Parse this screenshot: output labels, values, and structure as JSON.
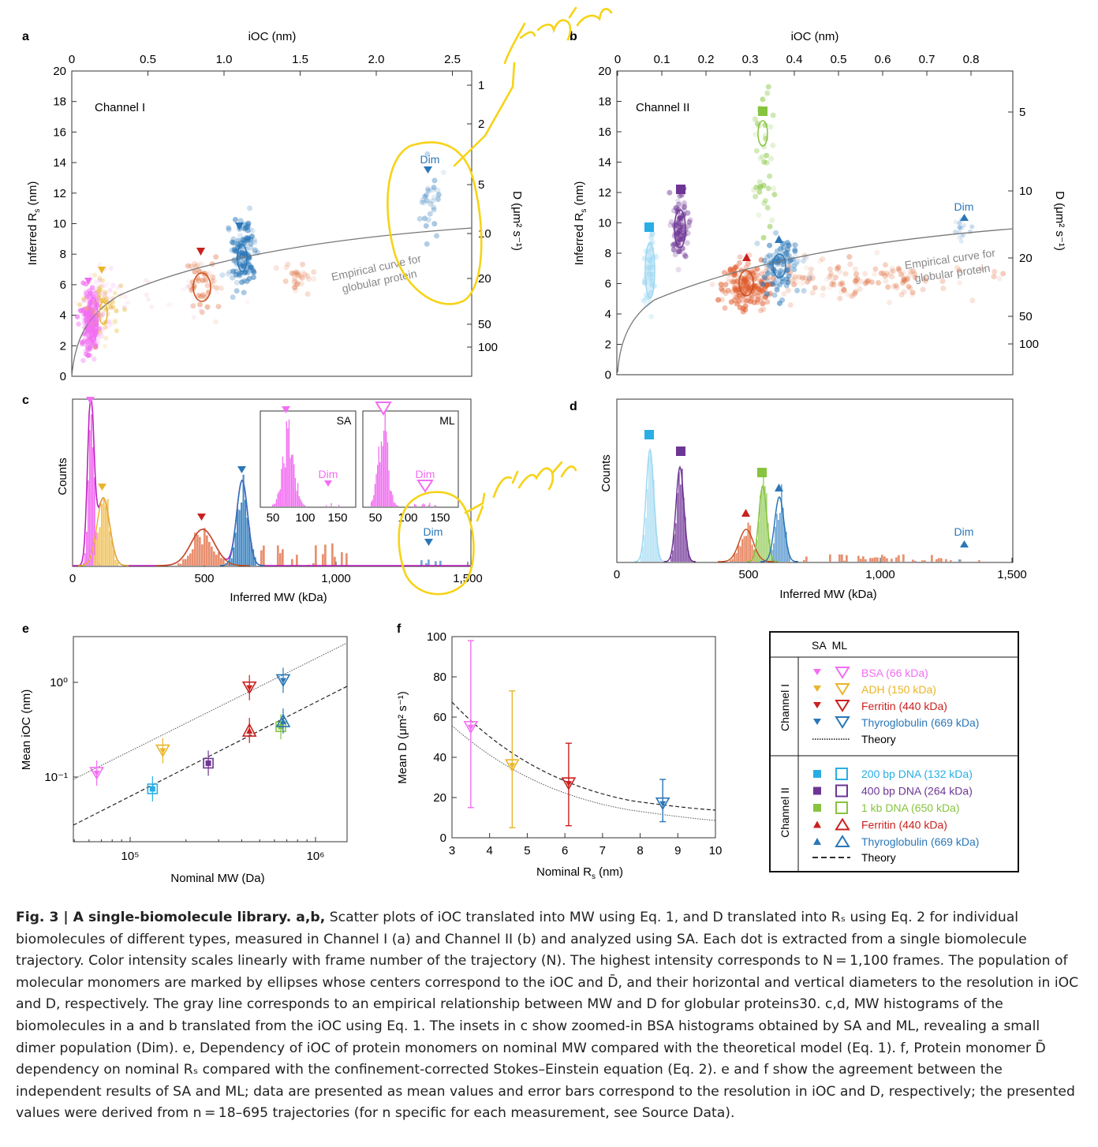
{
  "panels": {
    "a": {
      "label": "a",
      "top_axis": "iOC (nm)",
      "left_axis": "Inferred R",
      "left_sub": "s",
      "left_unit": " (nm)",
      "right_axis": "D (μm² s⁻¹)",
      "channel": "Channel I",
      "dim": "Dim",
      "curve_label_1": "Empirical curve for",
      "curve_label_2": "globular protein",
      "top_ticks": [
        "0",
        "0.5",
        "1.0",
        "1.5",
        "2.0",
        "2.5"
      ],
      "left_ticks": [
        "0",
        "2",
        "4",
        "6",
        "8",
        "10",
        "12",
        "14",
        "16",
        "18",
        "20"
      ],
      "right_ticks": [
        "1",
        "2",
        "5",
        "10",
        "20",
        "50",
        "100"
      ]
    },
    "b": {
      "label": "b",
      "top_axis": "iOC (nm)",
      "left_axis": "Inferred R",
      "left_sub": "s",
      "left_unit": " (nm)",
      "right_axis": "D (μm² s⁻¹)",
      "channel": "Channel II",
      "dim": "Dim",
      "curve_label_1": "Empirical curve for",
      "curve_label_2": "globular protein",
      "top_ticks": [
        "0",
        "0.1",
        "0.2",
        "0.3",
        "0.4",
        "0.5",
        "0.6",
        "0.7",
        "0.8"
      ],
      "left_ticks": [
        "0",
        "2",
        "4",
        "6",
        "8",
        "10",
        "12",
        "14",
        "16",
        "18",
        "20"
      ],
      "right_ticks": [
        "5",
        "10",
        "20",
        "50",
        "100"
      ]
    },
    "c": {
      "label": "c",
      "xlabel": "Inferred MW (kDa)",
      "ylabel": "Counts",
      "xticks": [
        "0",
        "500",
        "1,000",
        "1,500"
      ],
      "inset1": "SA",
      "inset2": "ML",
      "inset_dim": "Dim",
      "inset_ticks": [
        "50",
        "100",
        "150"
      ],
      "dim": "Dim"
    },
    "d": {
      "label": "d",
      "xlabel": "Inferred MW (kDa)",
      "ylabel": "Counts",
      "xticks": [
        "0",
        "500",
        "1,000",
        "1,500"
      ],
      "dim": "Dim"
    },
    "e": {
      "label": "e",
      "xlabel": "Nominal MW (Da)",
      "ylabel": "Mean iOC (nm)",
      "yticks": [
        "10⁻¹",
        "10⁰"
      ],
      "xticks": [
        "10⁵",
        "10⁶"
      ]
    },
    "f": {
      "label": "f",
      "xlabel": "Nominal R",
      "xlabel_sub": "s",
      "xlabel_unit": " (nm)",
      "ylabel": "Mean D (μm² s⁻¹)",
      "xticks": [
        "3",
        "4",
        "5",
        "6",
        "7",
        "8",
        "9",
        "10"
      ],
      "yticks": [
        "0",
        "20",
        "40",
        "60",
        "80",
        "100"
      ]
    }
  },
  "legend": {
    "header": "SA  ML",
    "group1": "Channel I",
    "group2": "Channel II",
    "items1": [
      {
        "label": "BSA (66 kDa)",
        "color": "#f26ef2"
      },
      {
        "label": "ADH (150 kDa)",
        "color": "#e9b52a"
      },
      {
        "label": "Ferritin (440 kDa)",
        "color": "#c8211f"
      },
      {
        "label": "Thyroglobulin (669 kDa)",
        "color": "#2a77b8"
      }
    ],
    "theory1": "Theory",
    "items2": [
      {
        "label": "200 bp DNA (132 kDa)",
        "color": "#28aee5"
      },
      {
        "label": "400 bp DNA (264 kDa)",
        "color": "#6e3694"
      },
      {
        "label": "1 kb DNA (650 kDa)",
        "color": "#86c440"
      },
      {
        "label": "Ferritin (440 kDa)",
        "color": "#c8211f"
      },
      {
        "label": "Thyroglobulin (669 kDa)",
        "color": "#2a77b8"
      }
    ],
    "theory2": "Theory"
  },
  "chart_data": [
    {
      "type": "scatter",
      "panel": "e",
      "title": "",
      "xlabel": "Nominal MW (Da)",
      "ylabel": "Mean iOC (nm)",
      "xscale": "log",
      "yscale": "log",
      "series": [
        {
          "name": "BSA (66 kDa)",
          "x": [
            66000
          ],
          "y": [
            0.11
          ]
        },
        {
          "name": "ADH (150 kDa)",
          "x": [
            150000
          ],
          "y": [
            0.19
          ]
        },
        {
          "name": "Ferritin (440 kDa)",
          "x": [
            440000
          ],
          "y": [
            0.88
          ]
        },
        {
          "name": "Thyroglobulin (669 kDa)",
          "x": [
            669000
          ],
          "y": [
            1.05
          ]
        },
        {
          "name": "200 bp DNA (132 kDa)",
          "x": [
            132000
          ],
          "y": [
            0.075
          ]
        },
        {
          "name": "400 bp DNA (264 kDa)",
          "x": [
            264000
          ],
          "y": [
            0.14
          ]
        },
        {
          "name": "1 kb DNA (650 kDa)",
          "x": [
            650000
          ],
          "y": [
            0.34
          ]
        },
        {
          "name": "Ferritin (440 kDa)",
          "x": [
            440000
          ],
          "y": [
            0.31
          ]
        },
        {
          "name": "Thyroglobulin (669 kDa)",
          "x": [
            669000
          ],
          "y": [
            0.39
          ]
        }
      ]
    },
    {
      "type": "scatter",
      "panel": "f",
      "title": "",
      "xlabel": "Nominal Rs (nm)",
      "ylabel": "Mean D (μm² s⁻¹)",
      "xlim": [
        3,
        10
      ],
      "ylim": [
        0,
        100
      ],
      "series": [
        {
          "name": "BSA (66 kDa)",
          "x": [
            3.5
          ],
          "y": [
            55
          ]
        },
        {
          "name": "ADH (150 kDa)",
          "x": [
            4.6
          ],
          "y": [
            36
          ]
        },
        {
          "name": "Ferritin (440 kDa)",
          "x": [
            6.1
          ],
          "y": [
            27
          ]
        },
        {
          "name": "Thyroglobulin (669 kDa)",
          "x": [
            8.6
          ],
          "y": [
            17
          ]
        }
      ]
    }
  ]
}
